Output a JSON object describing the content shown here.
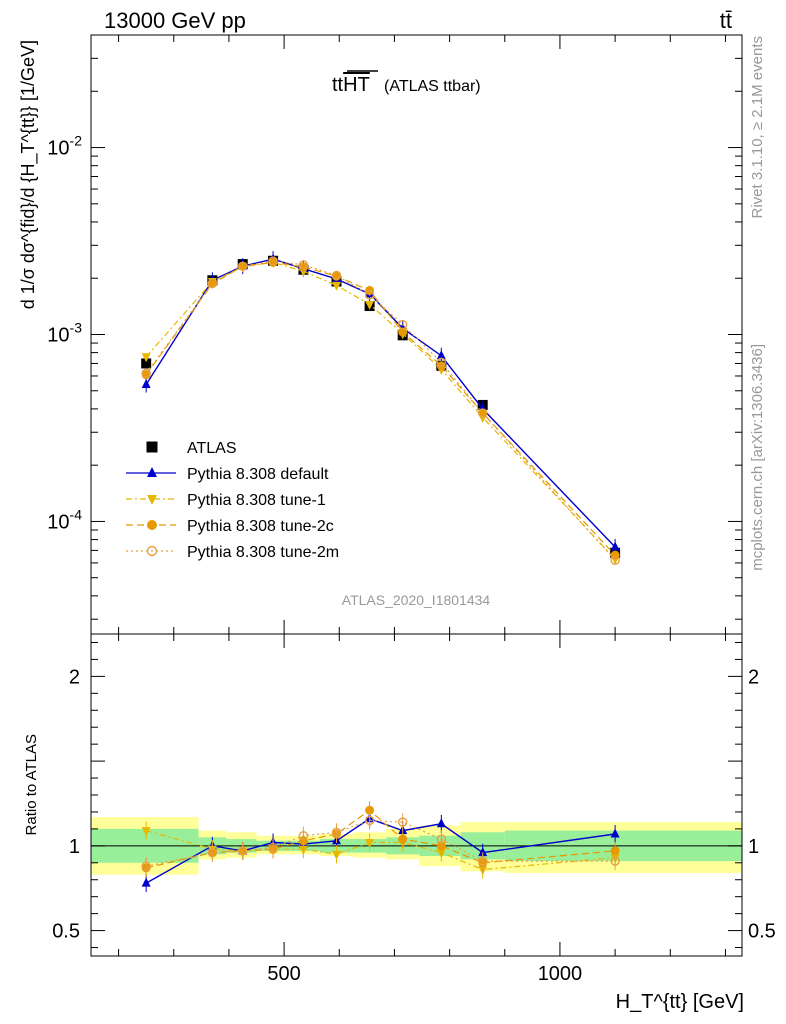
{
  "header": {
    "left": "13000 GeV pp",
    "right": "tt̄"
  },
  "side_text": {
    "top": "Rivet 3.1.10, ≥ 2.1M events",
    "bottom": "mcplots.cern.ch [arXiv:1306.3436]"
  },
  "plot_title": {
    "main": "tt",
    "overline": "HT",
    "sub": "(ATLAS ttbar)"
  },
  "analysis_label": "ATLAS_2020_I1801434",
  "y_axis_label": "d 1/σ dσ^{fid}/d {H_T^{tt}} [1/GeV]",
  "ratio_y_label": "Ratio to ATLAS",
  "x_axis_label": "H_T^{tt} [GeV]",
  "colors": {
    "data": "#000000",
    "default": "#0000cc",
    "tune1": "#e6b800",
    "tune2c": "#e69900",
    "tune2m": "#e6a040",
    "band_inner": "#99ee99",
    "band_outer": "#ffff99"
  },
  "chart_data": [
    {
      "type": "scatter",
      "panel": "main",
      "yscale": "log",
      "xlim": [
        150,
        1330
      ],
      "ylim": [
        2.5e-05,
        0.04
      ],
      "x_ticks": [
        500,
        1000
      ],
      "y_ticks": [
        {
          "value": 0.01,
          "label": "10^{-2}"
        },
        {
          "value": 0.001,
          "label": "10^{-3}"
        },
        {
          "value": 0.0001,
          "label": "10^{-4}"
        }
      ],
      "x": [
        250,
        370,
        425,
        480,
        535,
        595,
        655,
        715,
        785,
        860,
        1100
      ],
      "xerr": [
        100,
        25,
        25,
        25,
        25,
        30,
        30,
        30,
        35,
        40,
        230
      ],
      "series": [
        {
          "name": "ATLAS",
          "key": "data",
          "marker": "square",
          "line": "none",
          "values": [
            0.0007,
            0.00195,
            0.00238,
            0.00248,
            0.00222,
            0.00192,
            0.00142,
            0.00099,
            0.00068,
            0.00042,
            6.8e-05
          ]
        },
        {
          "name": "Pythia 8.308 default",
          "key": "default",
          "marker": "triangle-up",
          "line": "solid",
          "values": [
            0.00054,
            0.00195,
            0.00232,
            0.00253,
            0.00225,
            0.00198,
            0.00165,
            0.00108,
            0.00077,
            0.0004,
            7.3e-05
          ]
        },
        {
          "name": "Pythia 8.308 tune-1",
          "key": "tune1",
          "marker": "triangle-down",
          "line": "dashdot",
          "values": [
            0.00076,
            0.00192,
            0.0023,
            0.00243,
            0.00218,
            0.00183,
            0.00145,
            0.00101,
            0.00065,
            0.00036,
            6.3e-05
          ]
        },
        {
          "name": "Pythia 8.308 tune-2c",
          "key": "tune2c",
          "marker": "circle",
          "line": "dashed",
          "values": [
            0.00061,
            0.00187,
            0.00232,
            0.00243,
            0.0023,
            0.00205,
            0.00172,
            0.00103,
            0.00068,
            0.00038,
            6.6e-05
          ]
        },
        {
          "name": "Pythia 8.308 tune-2m",
          "key": "tune2m",
          "marker": "open-circle",
          "line": "dotted",
          "values": [
            0.00062,
            0.00188,
            0.00232,
            0.00247,
            0.00236,
            0.00207,
            0.00163,
            0.00113,
            0.00071,
            0.00038,
            6.2e-05
          ]
        }
      ],
      "legend_position": "center-left"
    },
    {
      "type": "scatter",
      "panel": "ratio",
      "yscale": "linear",
      "xlim": [
        150,
        1330
      ],
      "ylim": [
        0.35,
        2.25
      ],
      "y_ticks": [
        {
          "value": 2,
          "label": "2"
        },
        {
          "value": 1,
          "label": "1"
        },
        {
          "value": 0.5,
          "label": "0.5"
        }
      ],
      "bands": [
        {
          "x0": 150,
          "x1": 345,
          "inner": [
            0.9,
            1.1
          ],
          "outer": [
            0.83,
            1.17
          ]
        },
        {
          "x0": 345,
          "x1": 395,
          "inner": [
            0.95,
            1.05
          ],
          "outer": [
            0.92,
            1.09
          ]
        },
        {
          "x0": 395,
          "x1": 450,
          "inner": [
            0.96,
            1.04
          ],
          "outer": [
            0.93,
            1.08
          ]
        },
        {
          "x0": 450,
          "x1": 505,
          "inner": [
            0.97,
            1.03
          ],
          "outer": [
            0.95,
            1.06
          ]
        },
        {
          "x0": 505,
          "x1": 565,
          "inner": [
            0.97,
            1.03
          ],
          "outer": [
            0.95,
            1.06
          ]
        },
        {
          "x0": 565,
          "x1": 625,
          "inner": [
            0.96,
            1.04
          ],
          "outer": [
            0.94,
            1.07
          ]
        },
        {
          "x0": 625,
          "x1": 685,
          "inner": [
            0.96,
            1.04
          ],
          "outer": [
            0.93,
            1.08
          ]
        },
        {
          "x0": 685,
          "x1": 745,
          "inner": [
            0.95,
            1.05
          ],
          "outer": [
            0.92,
            1.1
          ]
        },
        {
          "x0": 745,
          "x1": 820,
          "inner": [
            0.94,
            1.06
          ],
          "outer": [
            0.88,
            1.12
          ]
        },
        {
          "x0": 820,
          "x1": 900,
          "inner": [
            0.92,
            1.08
          ],
          "outer": [
            0.85,
            1.14
          ]
        },
        {
          "x0": 900,
          "x1": 1330,
          "inner": [
            0.91,
            1.09
          ],
          "outer": [
            0.84,
            1.14
          ]
        }
      ],
      "series": [
        {
          "name": "Pythia 8.308 default",
          "key": "default",
          "marker": "triangle-up",
          "line": "solid",
          "values": [
            0.78,
            1.0,
            0.97,
            1.02,
            1.01,
            1.03,
            1.16,
            1.09,
            1.13,
            0.96,
            1.07
          ]
        },
        {
          "name": "Pythia 8.308 tune-1",
          "key": "tune1",
          "marker": "triangle-down",
          "line": "dashdot",
          "values": [
            1.09,
            0.98,
            0.97,
            0.98,
            0.98,
            0.95,
            1.02,
            1.02,
            0.96,
            0.86,
            0.93
          ]
        },
        {
          "name": "Pythia 8.308 tune-2c",
          "key": "tune2c",
          "marker": "circle",
          "line": "dashed",
          "values": [
            0.87,
            0.96,
            0.97,
            0.98,
            1.03,
            1.07,
            1.21,
            1.04,
            1.0,
            0.9,
            0.97
          ]
        },
        {
          "name": "Pythia 8.308 tune-2m",
          "key": "tune2m",
          "marker": "open-circle",
          "line": "dotted",
          "values": [
            0.88,
            0.96,
            0.97,
            0.99,
            1.06,
            1.08,
            1.15,
            1.14,
            1.04,
            0.91,
            0.91
          ]
        }
      ]
    }
  ]
}
